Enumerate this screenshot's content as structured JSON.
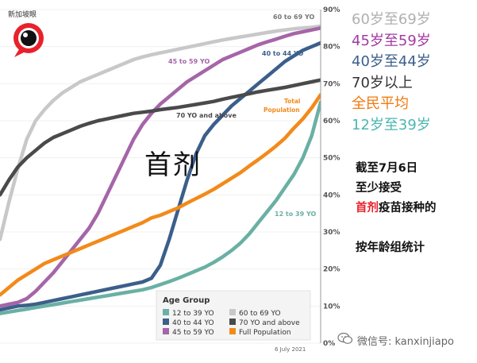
{
  "chart_data": {
    "type": "line",
    "title": "Age Group",
    "date": "6 July 2021",
    "ylim": [
      0,
      90
    ],
    "yticks": [
      "0%",
      "10%",
      "20%",
      "30%",
      "40%",
      "50%",
      "60%",
      "70%",
      "80%",
      "90%"
    ],
    "n_points": 37,
    "series": [
      {
        "key": "s60",
        "name": "60 to 69 YO",
        "legend": "60 to 69 YO",
        "color": "#c8c8c8",
        "values": [
          28,
          38,
          47,
          55,
          60,
          63,
          65.5,
          67.5,
          69,
          70.5,
          71.5,
          72.5,
          73.5,
          74.5,
          75.5,
          76.5,
          77.2,
          77.8,
          78.3,
          78.8,
          79.3,
          79.8,
          80.3,
          80.8,
          81.3,
          81.8,
          82.2,
          82.6,
          83,
          83.4,
          83.8,
          84.2,
          84.5,
          84.8,
          85,
          85.2,
          85.5
        ]
      },
      {
        "key": "s45",
        "name": "45 to 59 YO",
        "legend": "45 to 59 YO",
        "color": "#a565a8",
        "values": [
          10,
          10.5,
          11,
          12,
          14,
          16.5,
          19,
          22,
          25,
          28,
          31,
          35,
          40,
          45,
          50,
          55,
          59,
          62,
          64.5,
          66.5,
          68.5,
          70.5,
          72,
          73.5,
          75,
          76.5,
          77.5,
          78.5,
          79.5,
          80.5,
          81.3,
          82,
          82.8,
          83.5,
          84,
          84.5,
          85
        ]
      },
      {
        "key": "s40",
        "name": "40 to 44 YO",
        "legend": "40 to 44 YO",
        "color": "#3b5f8a",
        "values": [
          9,
          9.5,
          10,
          10.2,
          10.5,
          11,
          11.5,
          12,
          12.5,
          13,
          13.5,
          14,
          14.5,
          15,
          15.5,
          16,
          16.5,
          17.5,
          21,
          28,
          36,
          44,
          51,
          56,
          59,
          61.5,
          64,
          66,
          68,
          70,
          72,
          74,
          76,
          77.5,
          79,
          80,
          81
        ]
      },
      {
        "key": "s70",
        "name": "70 YO and above",
        "legend": "70 YO and above",
        "color": "#4a4a4a",
        "values": [
          40,
          44,
          47.5,
          50,
          52,
          54,
          55.5,
          56.5,
          57.5,
          58.5,
          59.3,
          60,
          60.5,
          61,
          61.5,
          62,
          62.3,
          62.6,
          63,
          63.3,
          63.6,
          64,
          64.4,
          64.8,
          65.2,
          65.8,
          66.3,
          66.8,
          67.3,
          67.8,
          68.2,
          68.6,
          69,
          69.5,
          70,
          70.5,
          71
        ]
      },
      {
        "key": "sfull",
        "name": "Total Population",
        "legend": "Full Population",
        "color": "#f28a1a",
        "values": [
          13,
          15,
          17,
          18.5,
          20,
          21.5,
          22.5,
          23.5,
          24.5,
          25.5,
          26.5,
          27.5,
          28.5,
          29.5,
          30.5,
          31.5,
          32.5,
          33.8,
          34.5,
          35.5,
          36.5,
          37.8,
          39,
          40.2,
          41.5,
          43,
          44.5,
          46,
          47.8,
          49.5,
          51.3,
          53.2,
          55.3,
          58,
          60.5,
          63.5,
          67
        ]
      },
      {
        "key": "s12",
        "name": "12 to 39 YO",
        "legend": "12 to 39 YO",
        "color": "#6ab0a4",
        "values": [
          8,
          8.4,
          8.8,
          9.2,
          9.6,
          10,
          10.4,
          10.8,
          11.2,
          11.6,
          12,
          12.4,
          12.8,
          13.2,
          13.6,
          14,
          14.4,
          15,
          15.8,
          16.6,
          17.5,
          18.5,
          19.5,
          20.5,
          21.8,
          23.3,
          25,
          27,
          29.5,
          32.5,
          35.5,
          38.5,
          42,
          45.5,
          50,
          56,
          65
        ]
      }
    ],
    "series_labels": {
      "s60": "60 to 69 YO",
      "s45": "45 to 59 YO",
      "s40": "40 to 44 YO",
      "s70": "70 YO and above",
      "sfull_1": "Total",
      "sfull_2": "Population",
      "s12": "12 to 39 YO"
    }
  },
  "legend_cn": [
    {
      "text": "60岁至69岁",
      "color": "#b0b0b0"
    },
    {
      "text": "45岁至59岁",
      "color": "#a23aa3"
    },
    {
      "text": "40岁至44岁",
      "color": "#3b5f8a"
    },
    {
      "text": "70岁以上",
      "color": "#333333"
    },
    {
      "text": "全民平均",
      "color": "#f07a10"
    },
    {
      "text": "12岁至39岁",
      "color": "#4bb6b0"
    }
  ],
  "big_label": "首剂",
  "logo_text": "新加坡眼",
  "caption": {
    "line1": "截至7月6日",
    "line2": "至少接受",
    "line3_red": "首剂",
    "line3_rest": "疫苗接种的",
    "line4": "按年龄组统计"
  },
  "watermark": {
    "icon": "wechat-icon",
    "text": "微信号: kanxinjiapo"
  }
}
